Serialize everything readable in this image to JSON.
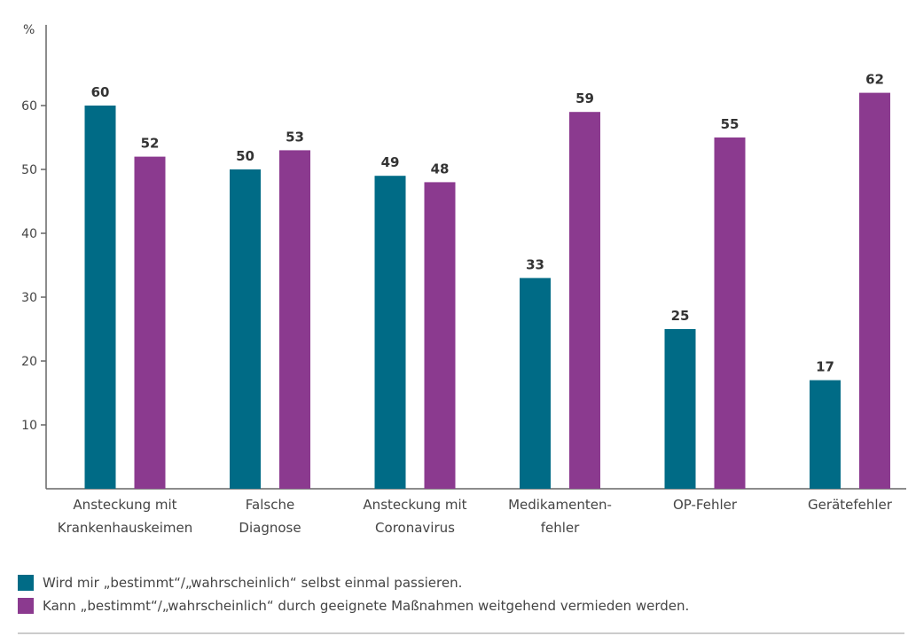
{
  "chart_data": {
    "type": "bar",
    "ylabel": "%",
    "ylim": [
      0,
      70
    ],
    "yticks": [
      10,
      20,
      30,
      40,
      50,
      60
    ],
    "categories": [
      [
        "Ansteckung mit",
        "Krankenhauskeimen"
      ],
      [
        "Falsche",
        "Diagnose"
      ],
      [
        "Ansteckung mit",
        "Coronavirus"
      ],
      [
        "Medikamenten-",
        "fehler"
      ],
      [
        "OP-Fehler"
      ],
      [
        "Gerätefehler"
      ]
    ],
    "series": [
      {
        "name": "Wird mir „bestimmt“/„wahrscheinlich“ selbst einmal passieren.",
        "color": "#006b86",
        "values": [
          60,
          50,
          49,
          33,
          25,
          17
        ]
      },
      {
        "name": "Kann „bestimmt“/„wahrscheinlich“ durch geeignete Maßnahmen weitgehend vermieden werden.",
        "color": "#8b3a8f",
        "values": [
          52,
          53,
          48,
          59,
          55,
          62
        ]
      }
    ],
    "grid": false,
    "legend_position": "bottom-left"
  }
}
